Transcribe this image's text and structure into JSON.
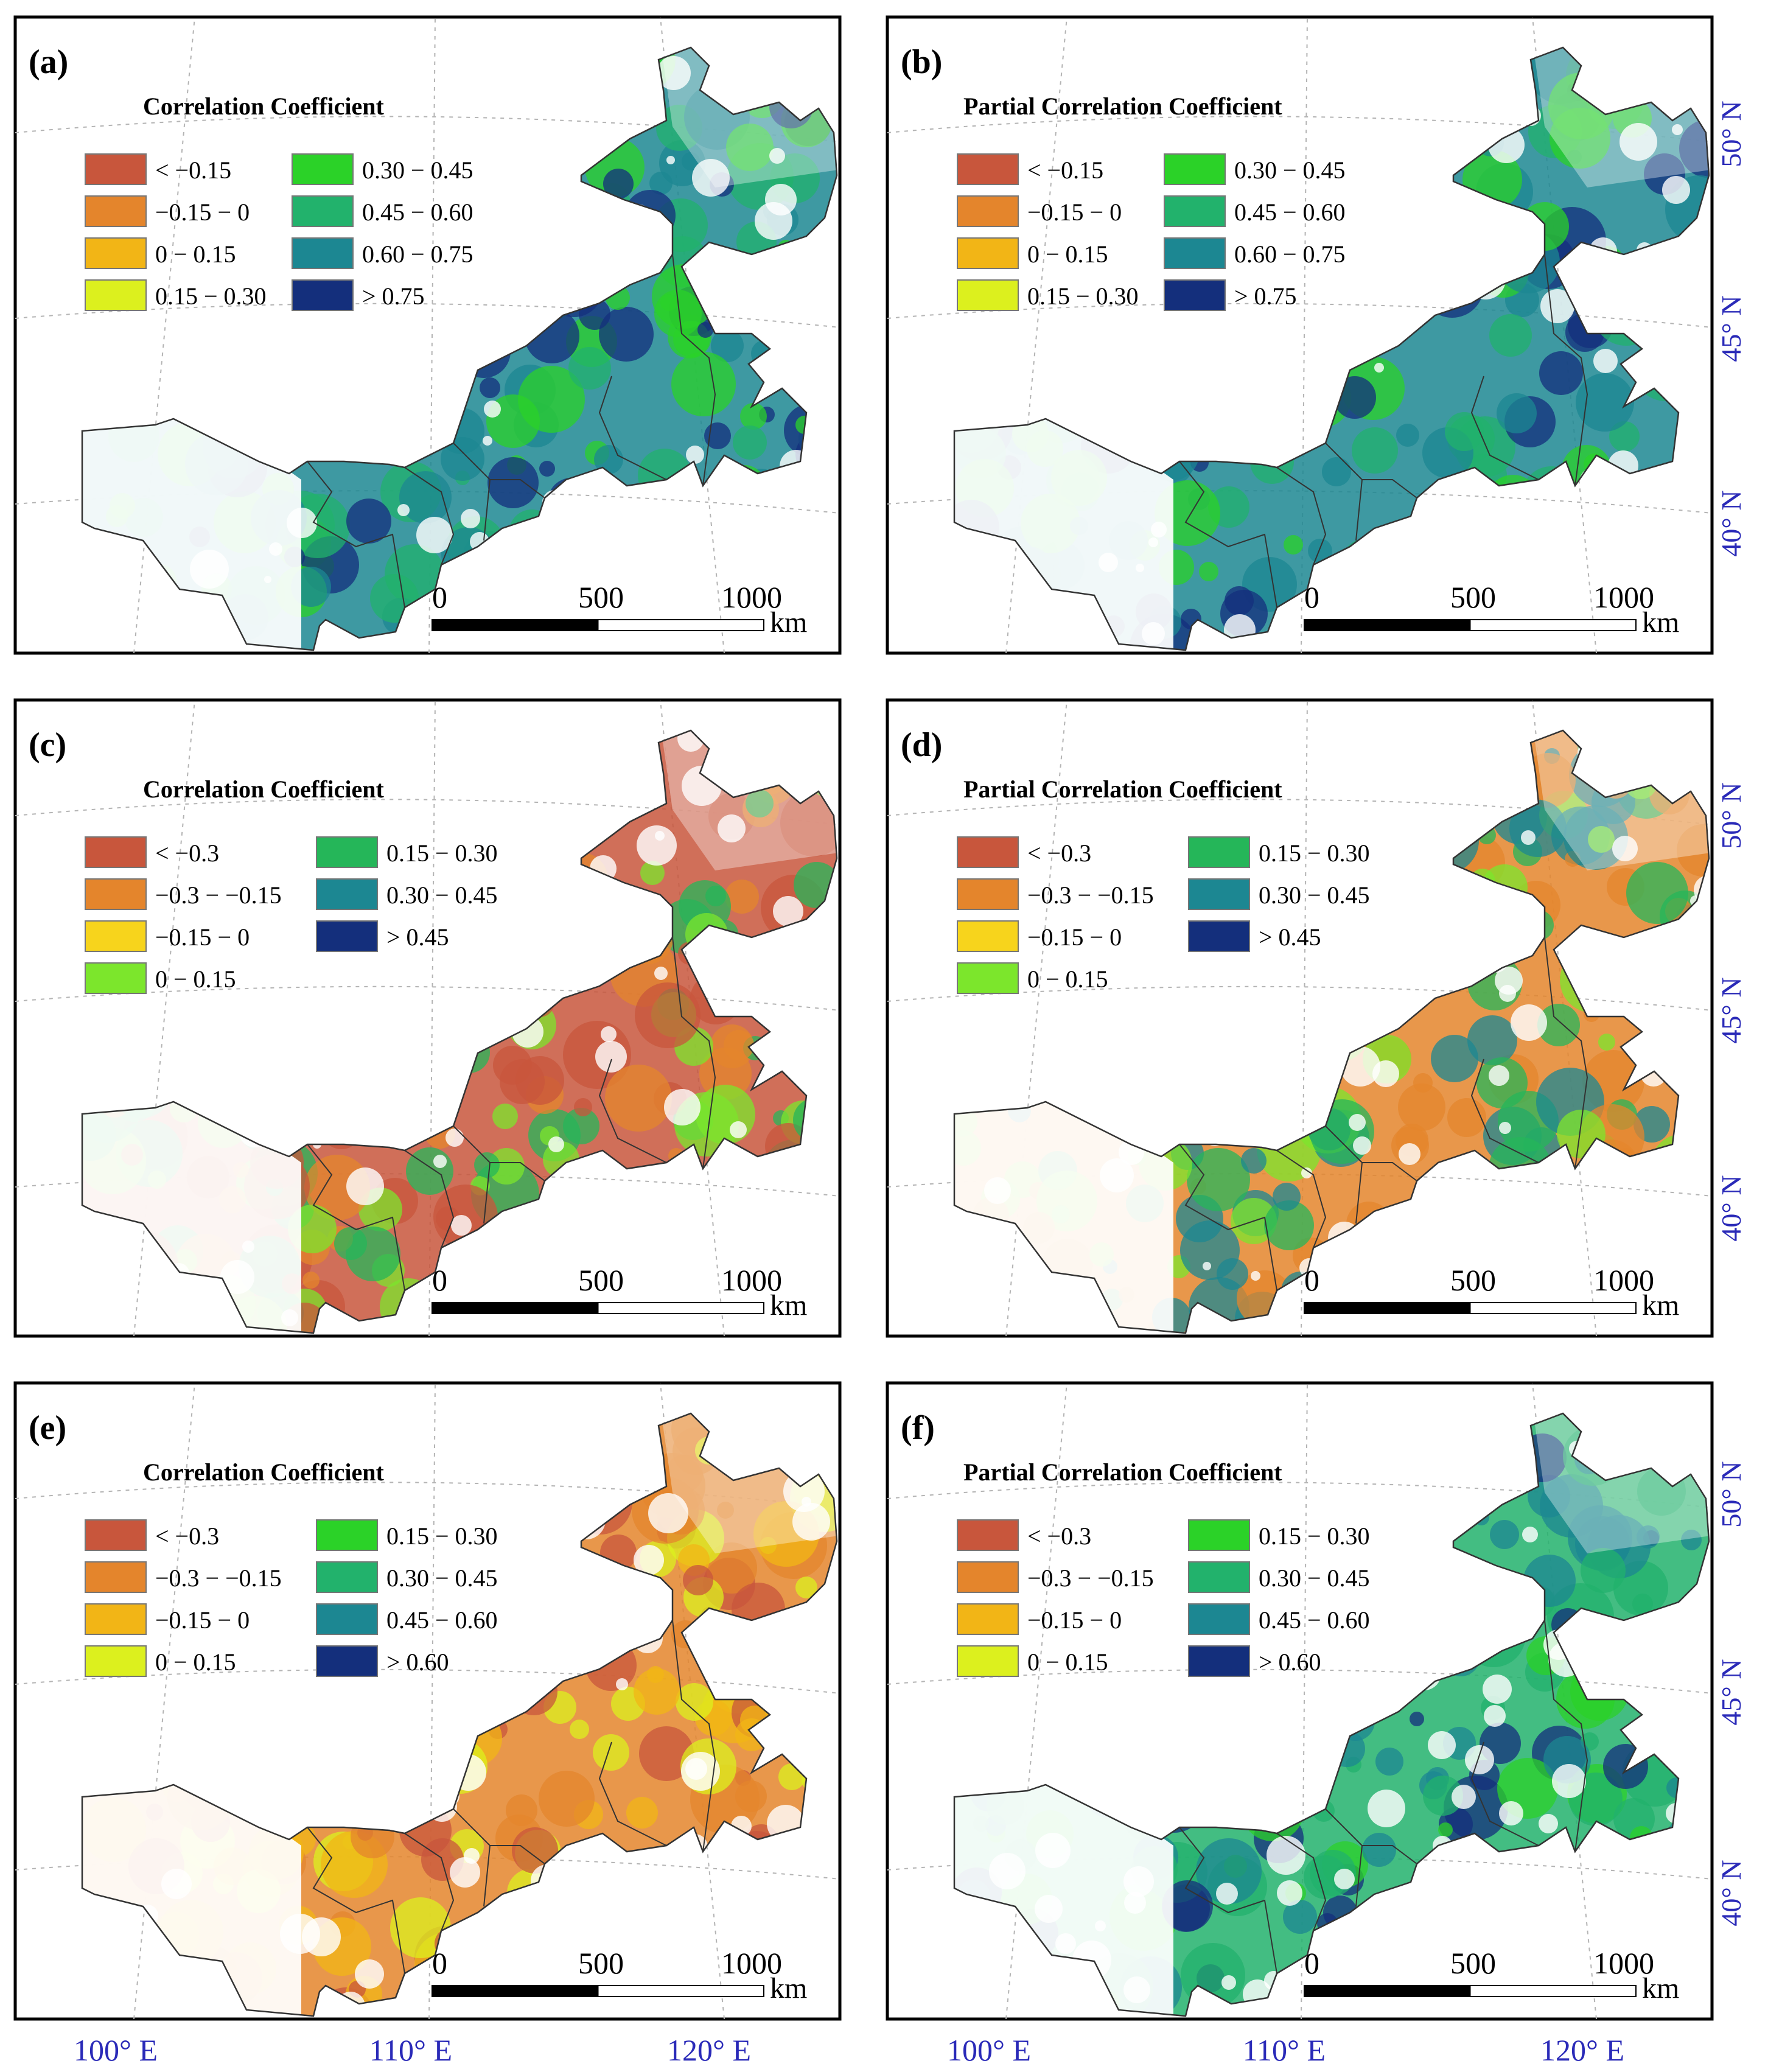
{
  "panels": [
    {
      "id": "a",
      "label": "(a)",
      "legend_title": "Correlation Coefficient",
      "legend": [
        {
          "label": "< −0.15",
          "color": "#c8563c"
        },
        {
          "label": "−0.15 − 0",
          "color": "#e4852c"
        },
        {
          "label": "0 − 0.15",
          "color": "#f2b516"
        },
        {
          "label": "0.15 − 0.30",
          "color": "#dcf01e"
        },
        {
          "label": "0.30 − 0.45",
          "color": "#2bd228"
        },
        {
          "label": "0.45 − 0.60",
          "color": "#22b26c"
        },
        {
          "label": "0.60 − 0.75",
          "color": "#1c8792"
        },
        {
          "label": "> 0.75",
          "color": "#142f7c"
        }
      ],
      "fill_palette": [
        "#1c8792",
        "#22b26c",
        "#142f7c",
        "#2bd228"
      ]
    },
    {
      "id": "b",
      "label": "(b)",
      "legend_title": "Partial Correlation Coefficient",
      "legend": [
        {
          "label": "< −0.15",
          "color": "#c8563c"
        },
        {
          "label": "−0.15 − 0",
          "color": "#e4852c"
        },
        {
          "label": "0 − 0.15",
          "color": "#f2b516"
        },
        {
          "label": "0.15 − 0.30",
          "color": "#dcf01e"
        },
        {
          "label": "0.30 − 0.45",
          "color": "#2bd228"
        },
        {
          "label": "0.45 − 0.60",
          "color": "#22b26c"
        },
        {
          "label": "0.60 − 0.75",
          "color": "#1c8792"
        },
        {
          "label": "> 0.75",
          "color": "#142f7c"
        }
      ],
      "fill_palette": [
        "#1c8792",
        "#22b26c",
        "#142f7c",
        "#2bd228"
      ]
    },
    {
      "id": "c",
      "label": "(c)",
      "legend_title": "Correlation Coefficient",
      "legend": [
        {
          "label": "< −0.3",
          "color": "#c8563c"
        },
        {
          "label": "−0.3 − −0.15",
          "color": "#e4852c"
        },
        {
          "label": "−0.15 − 0",
          "color": "#f7d41c"
        },
        {
          "label": "0 − 0.15",
          "color": "#7ce62c"
        },
        {
          "label": "0.15 − 0.30",
          "color": "#25b659"
        },
        {
          "label": "0.30 − 0.45",
          "color": "#1c8792"
        },
        {
          "label": "> 0.45",
          "color": "#142f7c"
        }
      ],
      "fill_palette": [
        "#c8563c",
        "#e4852c",
        "#7ce62c",
        "#25b659"
      ]
    },
    {
      "id": "d",
      "label": "(d)",
      "legend_title": "Partial Correlation Coefficient",
      "legend": [
        {
          "label": "< −0.3",
          "color": "#c8563c"
        },
        {
          "label": "−0.3 − −0.15",
          "color": "#e4852c"
        },
        {
          "label": "−0.15 − 0",
          "color": "#f7d41c"
        },
        {
          "label": "0 − 0.15",
          "color": "#7ce62c"
        },
        {
          "label": "0.15 − 0.30",
          "color": "#25b659"
        },
        {
          "label": "0.30 − 0.45",
          "color": "#1c8792"
        },
        {
          "label": "> 0.45",
          "color": "#142f7c"
        }
      ],
      "fill_palette": [
        "#e4852c",
        "#7ce62c",
        "#1c8792",
        "#25b659"
      ]
    },
    {
      "id": "e",
      "label": "(e)",
      "legend_title": "Correlation Coefficient",
      "legend": [
        {
          "label": "< −0.3",
          "color": "#c8563c"
        },
        {
          "label": "−0.3 − −0.15",
          "color": "#e4852c"
        },
        {
          "label": "−0.15 − 0",
          "color": "#f2b516"
        },
        {
          "label": "0 − 0.15",
          "color": "#dcf01e"
        },
        {
          "label": "0.15 − 0.30",
          "color": "#2bd228"
        },
        {
          "label": "0.30 − 0.45",
          "color": "#22b26c"
        },
        {
          "label": "0.45 − 0.60",
          "color": "#1c8792"
        },
        {
          "label": "> 0.60",
          "color": "#142f7c"
        }
      ],
      "fill_palette": [
        "#e4852c",
        "#f2b516",
        "#dcf01e",
        "#c8563c"
      ]
    },
    {
      "id": "f",
      "label": "(f)",
      "legend_title": "Partial Correlation Coefficient",
      "legend": [
        {
          "label": "< −0.3",
          "color": "#c8563c"
        },
        {
          "label": "−0.3 − −0.15",
          "color": "#e4852c"
        },
        {
          "label": "−0.15 − 0",
          "color": "#f2b516"
        },
        {
          "label": "0 − 0.15",
          "color": "#dcf01e"
        },
        {
          "label": "0.15 − 0.30",
          "color": "#2bd228"
        },
        {
          "label": "0.30 − 0.45",
          "color": "#22b26c"
        },
        {
          "label": "0.45 − 0.60",
          "color": "#1c8792"
        },
        {
          "label": "> 0.60",
          "color": "#142f7c"
        }
      ],
      "fill_palette": [
        "#22b26c",
        "#1c8792",
        "#2bd228",
        "#142f7c"
      ]
    }
  ],
  "scale_bar": {
    "ticks": [
      "0",
      "500",
      "1000"
    ],
    "unit": "km"
  },
  "latitudes": [
    "50° N",
    "45° N",
    "40° N"
  ],
  "longitudes": [
    "100° E",
    "110° E",
    "120° E"
  ],
  "colors": {
    "frame": "#000000",
    "graticule": "#b4b4b4",
    "axis_label": "#2a2ab8"
  }
}
